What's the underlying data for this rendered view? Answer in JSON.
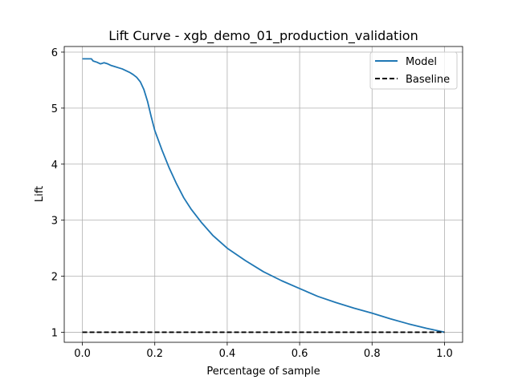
{
  "chart_data": {
    "type": "line",
    "title": "Lift Curve - xgb_demo_01_production_validation",
    "xlabel": "Percentage of sample",
    "ylabel": "Lift",
    "xlim": [
      -0.05,
      1.05
    ],
    "ylim": [
      0.82,
      6.1
    ],
    "xticks": [
      0.0,
      0.2,
      0.4,
      0.6,
      0.8,
      1.0
    ],
    "xtick_labels": [
      "0.0",
      "0.2",
      "0.4",
      "0.6",
      "0.8",
      "1.0"
    ],
    "yticks": [
      1,
      2,
      3,
      4,
      5,
      6
    ],
    "ytick_labels": [
      "1",
      "2",
      "3",
      "4",
      "5",
      "6"
    ],
    "grid": true,
    "legend": {
      "position": "top-right"
    },
    "series": [
      {
        "name": "Model",
        "color": "#1f77b4",
        "style": "solid",
        "x": [
          0.0,
          0.01,
          0.025,
          0.03,
          0.04,
          0.05,
          0.06,
          0.07,
          0.08,
          0.09,
          0.1,
          0.11,
          0.12,
          0.13,
          0.14,
          0.15,
          0.16,
          0.17,
          0.18,
          0.19,
          0.2,
          0.22,
          0.24,
          0.26,
          0.28,
          0.3,
          0.33,
          0.36,
          0.4,
          0.45,
          0.5,
          0.55,
          0.6,
          0.65,
          0.7,
          0.75,
          0.8,
          0.85,
          0.9,
          0.95,
          1.0
        ],
        "y": [
          5.88,
          5.88,
          5.88,
          5.84,
          5.82,
          5.79,
          5.81,
          5.79,
          5.76,
          5.74,
          5.72,
          5.7,
          5.67,
          5.64,
          5.6,
          5.55,
          5.47,
          5.33,
          5.12,
          4.85,
          4.6,
          4.25,
          3.93,
          3.65,
          3.4,
          3.2,
          2.95,
          2.73,
          2.5,
          2.28,
          2.08,
          1.92,
          1.78,
          1.64,
          1.53,
          1.43,
          1.34,
          1.24,
          1.15,
          1.07,
          1.0
        ]
      },
      {
        "name": "Baseline",
        "color": "#000000",
        "style": "dashed",
        "x": [
          0.0,
          1.0
        ],
        "y": [
          1.0,
          1.0
        ]
      }
    ]
  }
}
